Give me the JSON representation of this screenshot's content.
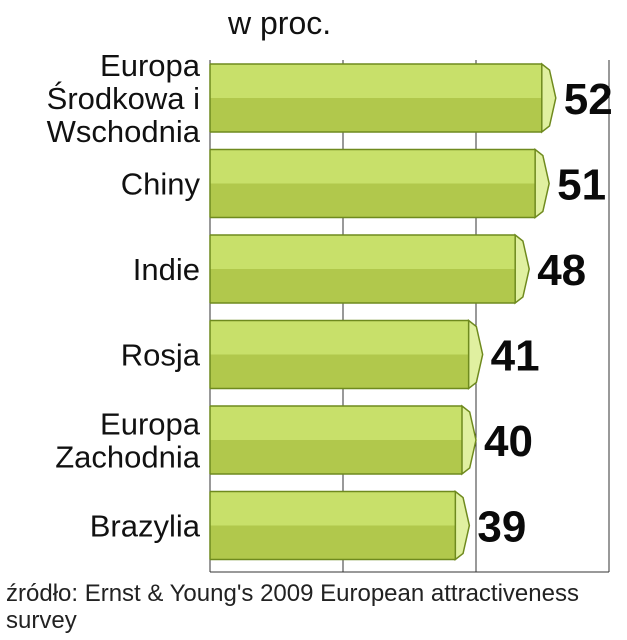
{
  "chart_data": {
    "type": "bar",
    "orientation": "horizontal",
    "unit_label": "w proc.",
    "categories": [
      [
        "Europa",
        "Środkowa i",
        "Wschodnia"
      ],
      [
        "Chiny"
      ],
      [
        "Indie"
      ],
      [
        "Rosja"
      ],
      [
        "Europa",
        "Zachodnia"
      ],
      [
        "Brazylia"
      ]
    ],
    "values": [
      52,
      51,
      48,
      41,
      40,
      39
    ],
    "xlim": [
      0,
      60
    ],
    "grid": true,
    "colors": {
      "bar_top": "#c8e06a",
      "bar_bottom": "#b1c84c",
      "bar_cap": "#e0f0a0",
      "bar_edge": "#6f8a1e"
    }
  },
  "source": "źródło: Ernst & Young's 2009 European attractiveness survey"
}
